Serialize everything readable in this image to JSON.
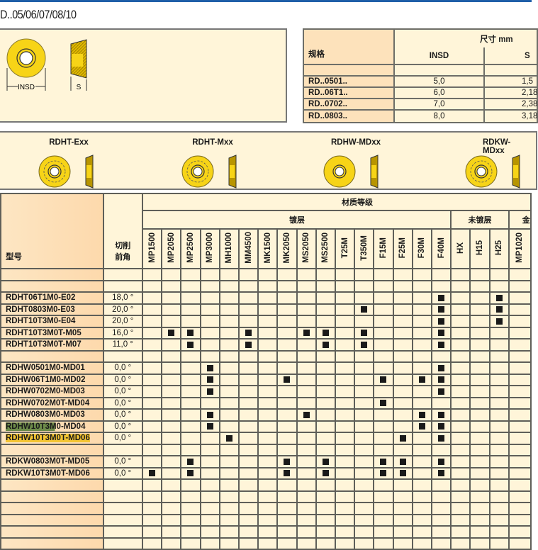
{
  "title": "D..05/06/07/08/10",
  "diagram_labels": {
    "insd": "INSD",
    "s": "S"
  },
  "dimensions": {
    "spec_header": "规格",
    "size_header": "尺寸 mm",
    "columns": [
      "INSD",
      "S"
    ],
    "rows": [
      {
        "spec": "RD..0501..",
        "insd": "5,0",
        "s": "1,5"
      },
      {
        "spec": "RD..06T1..",
        "insd": "6,0",
        "s": "2,18"
      },
      {
        "spec": "RD..0702..",
        "insd": "7,0",
        "s": "2,38"
      },
      {
        "spec": "RD..0803..",
        "insd": "8,0",
        "s": "3,18"
      }
    ]
  },
  "geometries": [
    "RDHT-Exx",
    "RDHT-Mxx",
    "RDHW-MDxx",
    "RDKW-MDxx"
  ],
  "grades": {
    "model_header": "型号",
    "angle_header_1": "切削",
    "angle_header_2": "前角",
    "group_header": "材质等级",
    "coated": "镀层",
    "uncoated": "未镀层",
    "cermet": "金",
    "columns": [
      "MP1500",
      "MP2050",
      "MP2500",
      "MP3000",
      "MH1000",
      "MM4500",
      "MK1500",
      "MK2050",
      "MS2050",
      "MS2500",
      "T25M",
      "T350M",
      "F15M",
      "F25M",
      "F30M",
      "F40M",
      "HX",
      "H15",
      "H25",
      "MP1020"
    ],
    "rows": [
      null,
      {
        "model": "RDHT06T1M0-E02",
        "angle": "18,0 °",
        "marks": [
          "F40M",
          "H25"
        ]
      },
      {
        "model": "RDHT0803M0-E03",
        "angle": "20,0 °",
        "marks": [
          "T350M",
          "F40M",
          "H25"
        ]
      },
      {
        "model": "RDHT10T3M0-E04",
        "angle": "20,0 °",
        "marks": [
          "F40M",
          "H25"
        ]
      },
      {
        "model": "RDHT10T3M0T-M05",
        "angle": "16,0 °",
        "marks": [
          "MP2050",
          "MP2500",
          "MM4500",
          "MS2050",
          "MS2500",
          "T350M",
          "F40M"
        ]
      },
      {
        "model": "RDHT10T3M0T-M07",
        "angle": "11,0 °",
        "marks": [
          "MP2500",
          "MM4500",
          "MS2500",
          "T350M",
          "F40M"
        ]
      },
      null,
      {
        "model": "RDHW0501M0-MD01",
        "angle": "0,0 °",
        "marks": [
          "MP3000",
          "F40M"
        ]
      },
      {
        "model": "RDHW06T1M0-MD02",
        "angle": "0,0 °",
        "marks": [
          "MP3000",
          "MK2050",
          "F15M",
          "F30M",
          "F40M"
        ]
      },
      {
        "model": "RDHW0702M0-MD03",
        "angle": "0,0 °",
        "marks": [
          "MP3000",
          "F40M"
        ]
      },
      {
        "model": "RDHW0702M0T-MD04",
        "angle": "0,0 °",
        "marks": [
          "F15M"
        ]
      },
      {
        "model": "RDHW0803M0-MD03",
        "angle": "0,0 °",
        "marks": [
          "MP3000",
          "MS2050",
          "F30M",
          "F40M"
        ]
      },
      {
        "model": "RDHW10T3M0-MD04",
        "highlight": "RDHW10T3M",
        "highlight_color": "green",
        "angle": "0,0 °",
        "marks": [
          "MP3000",
          "F30M",
          "F40M"
        ]
      },
      {
        "model": "RDHW10T3M0T-MD06",
        "highlight": "RDHW10T3M0T-MD06",
        "highlight_color": "yellow",
        "angle": "0,0 °",
        "marks": [
          "MH1000",
          "F25M",
          "F40M"
        ]
      },
      null,
      {
        "model": "RDKW0803M0T-MD05",
        "angle": "0,0 °",
        "marks": [
          "MP2500",
          "MK2050",
          "MS2500",
          "F15M",
          "F25M",
          "F40M"
        ]
      },
      {
        "model": "RDKW10T3M0T-MD06",
        "angle": "0,0 °",
        "marks": [
          "MP1500",
          "MP2500",
          "MK2050",
          "MS2500",
          "F15M",
          "F25M",
          "F40M"
        ]
      },
      null,
      null,
      null,
      null,
      null,
      null
    ]
  },
  "colors": {
    "insert_yellow": "#f7d417",
    "cream": "#fff5d9",
    "header_orange": "#fde2bb",
    "top_bar": "#1f5fa8"
  }
}
